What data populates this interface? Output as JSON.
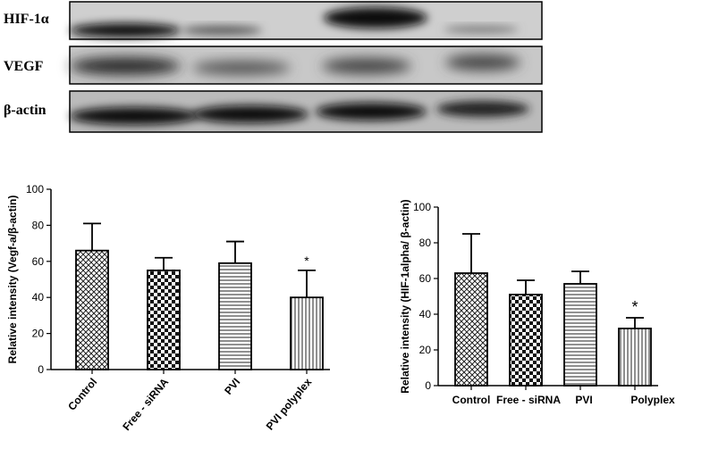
{
  "blots": [
    {
      "label": "HIF-1α"
    },
    {
      "label": "VEGF"
    },
    {
      "label": "β-actin"
    }
  ],
  "chart_data": [
    {
      "type": "bar",
      "categories": [
        "Control",
        "Free - siRNA",
        "PVI",
        "PVI polyplex"
      ],
      "values": [
        66,
        55,
        59,
        40
      ],
      "errors": [
        15,
        7,
        12,
        15
      ],
      "annotations": [
        "",
        "",
        "",
        "*"
      ],
      "patterns": [
        "crosshatch",
        "checker",
        "horizontal",
        "vertical"
      ],
      "ylabel": "Relative intensity (Vegf-a/β-actin)",
      "xlabel": "",
      "ylim": [
        0,
        100
      ],
      "yticks": [
        0,
        20,
        40,
        60,
        80,
        100
      ],
      "grid": false
    },
    {
      "type": "bar",
      "categories": [
        "Control",
        "Free - siRNA",
        "PVI",
        "Polyplex"
      ],
      "values": [
        63,
        51,
        57,
        32
      ],
      "errors": [
        22,
        8,
        7,
        6
      ],
      "annotations": [
        "",
        "",
        "",
        "*"
      ],
      "patterns": [
        "crosshatch",
        "checker",
        "horizontal",
        "vertical"
      ],
      "ylabel": "Relative intensity (HIF-1alpha/ β-actin)",
      "xlabel": "",
      "ylim": [
        0,
        100
      ],
      "yticks": [
        0,
        20,
        40,
        60,
        80,
        100
      ],
      "grid": false
    }
  ]
}
